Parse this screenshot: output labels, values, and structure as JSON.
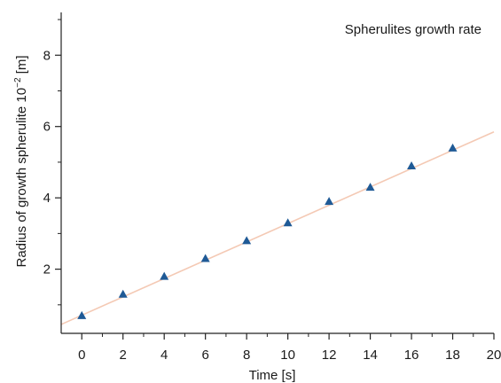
{
  "chart_data": {
    "type": "scatter",
    "title": "",
    "legend_text": "Spherulites growth rate",
    "legend_position": "top-right",
    "xlabel": "Time [s]",
    "ylabel_main": "Radius of growth spherulite 10",
    "ylabel_sup": "−2",
    "ylabel_unit": " [m]",
    "xlim": [
      -1,
      20
    ],
    "ylim": [
      0.2,
      9.2
    ],
    "xticks": [
      0,
      2,
      4,
      6,
      8,
      10,
      12,
      14,
      16,
      18,
      20
    ],
    "xtick_labels": [
      "0",
      "2",
      "4",
      "6",
      "8",
      "10",
      "12",
      "14",
      "16",
      "18",
      "20"
    ],
    "yticks": [
      2,
      4,
      6,
      8
    ],
    "ytick_labels": [
      "2",
      "4",
      "6",
      "8"
    ],
    "grid": false,
    "series": [
      {
        "x": [
          0,
          2,
          4,
          6,
          8,
          10,
          12,
          14,
          16,
          18
        ],
        "y": [
          0.7,
          1.3,
          1.8,
          2.3,
          2.8,
          3.3,
          3.9,
          4.3,
          4.9,
          5.4
        ]
      }
    ],
    "fit_line": {
      "x": [
        -1,
        20
      ],
      "y": [
        0.45,
        5.85
      ]
    },
    "colors": {
      "marker": "#1f5a96",
      "fit": "#f4c9b4",
      "axis": "#222222"
    }
  }
}
